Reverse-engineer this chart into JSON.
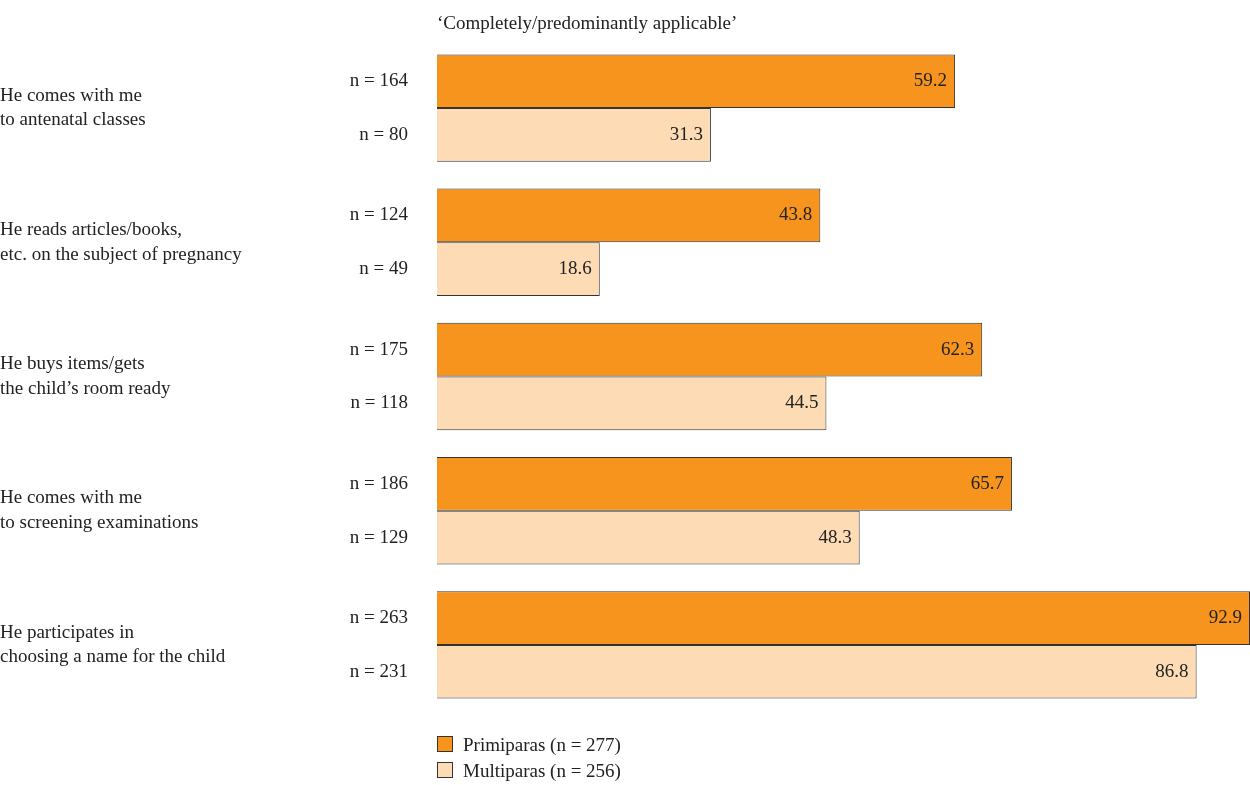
{
  "chart_data": {
    "type": "bar",
    "orientation": "horizontal",
    "title": "‘Completely/predominantly applicable’",
    "categories": [
      "He comes with me\nto antenatal classes",
      "He reads articles/books,\netc. on the subject of pregnancy",
      "He buys items/gets\nthe child’s room ready",
      "He comes with me\nto screening examinations",
      "He participates in\nchoosing a name for the child"
    ],
    "series": [
      {
        "name": "Primiparas (n = 277)",
        "color": "#f7941d",
        "values": [
          59.2,
          43.8,
          62.3,
          65.7,
          92.9
        ]
      },
      {
        "name": "Multiparas (n = 256)",
        "color": "#fddcb5",
        "values": [
          31.3,
          18.6,
          44.5,
          48.3,
          86.8
        ]
      }
    ],
    "annotations": [
      "n = 164",
      "n = 80",
      "n = 124",
      "n = 49",
      "n = 175",
      "n = 118",
      "n = 186",
      "n = 129",
      "n = 263",
      "n = 231"
    ],
    "data_labels": true,
    "grid": false,
    "legend": "bottom"
  }
}
